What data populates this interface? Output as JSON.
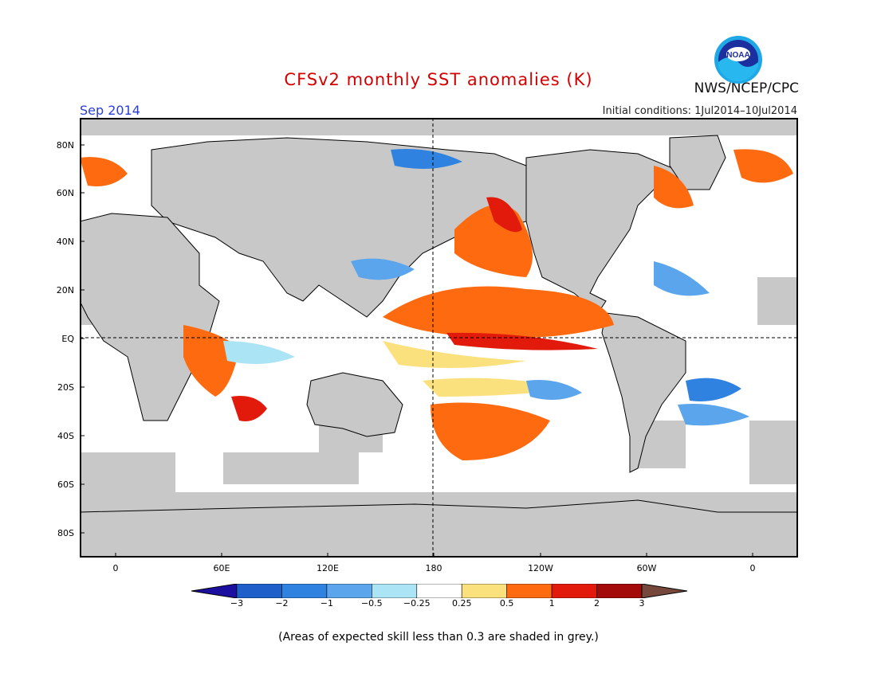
{
  "title": "CFSv2 monthly SST anomalies (K)",
  "month": "Sep 2014",
  "initial_conditions": "Initial conditions: 1Jul2014–10Jul2014",
  "agency": "NWS/NCEP/CPC",
  "logo_text": "NOAA",
  "footnote": "(Areas of expected skill less than 0.3 are shaded in grey.)",
  "map": {
    "lat_labels": [
      "80N",
      "60N",
      "40N",
      "20N",
      "EQ",
      "20S",
      "40S",
      "60S",
      "80S"
    ],
    "lon_labels": [
      "0",
      "60E",
      "120E",
      "180",
      "120W",
      "60W",
      "0"
    ],
    "land_color": "#c8c8c8",
    "ocean_color": "#ffffff"
  },
  "colorbar": {
    "tick_labels": [
      "−3",
      "−2",
      "−1",
      "−0.5",
      "−0.25",
      "0.25",
      "0.5",
      "1",
      "2",
      "3"
    ],
    "colors": [
      "#1c0fa0",
      "#1f5fc9",
      "#2f82e0",
      "#5aa5ec",
      "#aae4f5",
      "#ffffff",
      "#fbe07e",
      "#fd6a10",
      "#e21a0c",
      "#a30a0a",
      "#76483c"
    ]
  }
}
